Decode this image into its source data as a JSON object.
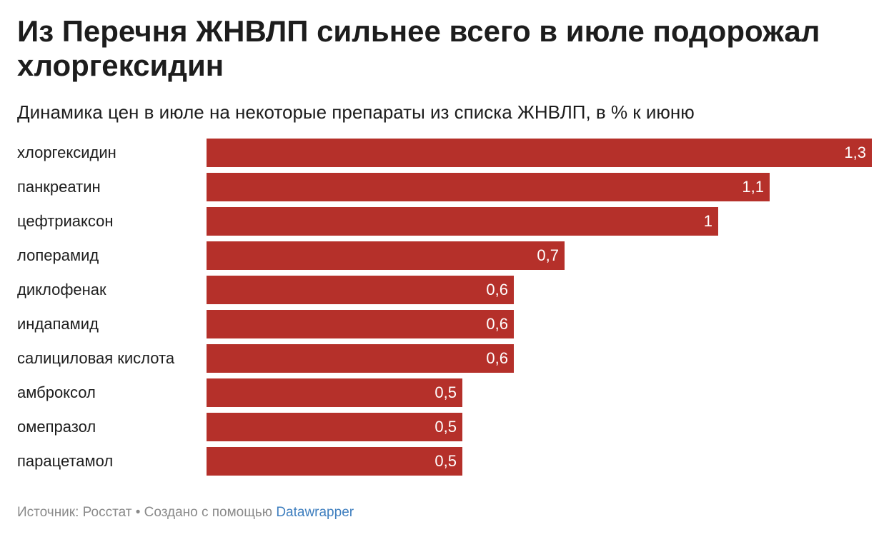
{
  "chart_data": {
    "type": "bar",
    "orientation": "horizontal",
    "title": "Из Перечня ЖНВЛП сильнее всего в июле подорожал хлоргексидин",
    "subtitle": "Динамика цен в июле на некоторые препараты из списка ЖНВЛП, в % к июню",
    "categories": [
      "хлоргексидин",
      "панкреатин",
      "цефтриаксон",
      "лоперамид",
      "диклофенак",
      "индапамид",
      "салициловая кислота",
      "амброксол",
      "омепразол",
      "парацетамол"
    ],
    "values": [
      1.3,
      1.1,
      1,
      0.7,
      0.6,
      0.6,
      0.6,
      0.5,
      0.5,
      0.5
    ],
    "value_labels": [
      "1,3",
      "1,1",
      "1",
      "0,7",
      "0,6",
      "0,6",
      "0,6",
      "0,5",
      "0,5",
      "0,5"
    ],
    "xlim": [
      0,
      1.3
    ],
    "bar_color": "#b5302a",
    "grid": false,
    "legend": "none"
  },
  "footer": {
    "source_text": "Источник: Росстат • Создано с помощью ",
    "link_text": "Datawrapper"
  }
}
